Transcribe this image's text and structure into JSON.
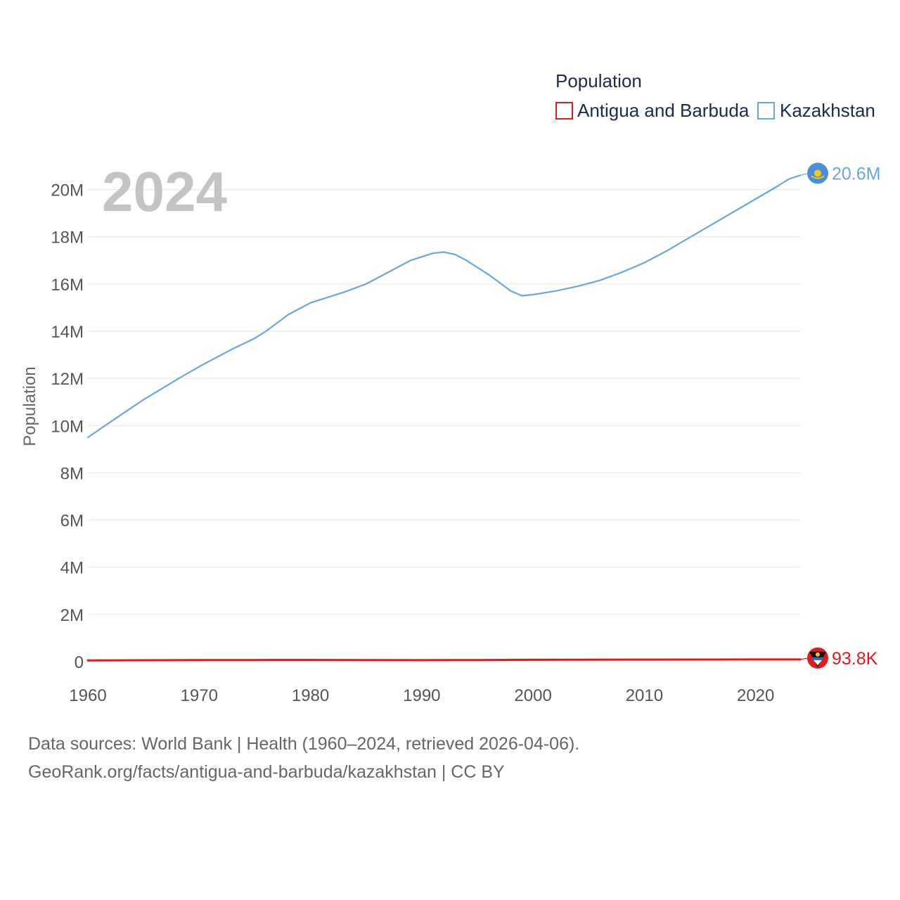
{
  "chart_data": {
    "type": "line",
    "title": "",
    "year_label": "2024",
    "xlabel": "",
    "ylabel": "Population",
    "legend_title": "Population",
    "legend_position": "top-right",
    "xlim": [
      1960,
      2024
    ],
    "ylim": [
      0,
      21000000
    ],
    "x_ticks": [
      1960,
      1970,
      1980,
      1990,
      2000,
      2010,
      2020
    ],
    "x_tick_labels": [
      "1960",
      "1970",
      "1980",
      "1990",
      "2000",
      "2010",
      "2020"
    ],
    "y_ticks": [
      0,
      2000000,
      4000000,
      6000000,
      8000000,
      10000000,
      12000000,
      14000000,
      16000000,
      18000000,
      20000000
    ],
    "y_tick_labels": [
      "0",
      "2M",
      "4M",
      "6M",
      "8M",
      "10M",
      "12M",
      "14M",
      "16M",
      "18M",
      "20M"
    ],
    "grid": true,
    "series": [
      {
        "name": "Antigua and Barbuda",
        "color": "#e31a1c",
        "end_label": "93.8K",
        "x": [
          1960,
          1965,
          1970,
          1975,
          1980,
          1985,
          1990,
          1995,
          2000,
          2005,
          2010,
          2015,
          2020,
          2024
        ],
        "values": [
          55000,
          60000,
          66000,
          69000,
          71000,
          66000,
          62000,
          68000,
          76000,
          81000,
          85000,
          88000,
          92000,
          93800
        ]
      },
      {
        "name": "Kazakhstan",
        "color": "#6aa6e0",
        "end_label": "20.6M",
        "x": [
          1960,
          1962,
          1965,
          1968,
          1970,
          1973,
          1975,
          1976,
          1978,
          1980,
          1983,
          1985,
          1987,
          1989,
          1991,
          1992,
          1993,
          1994,
          1996,
          1998,
          1999,
          2000,
          2002,
          2004,
          2006,
          2008,
          2010,
          2012,
          2014,
          2016,
          2018,
          2020,
          2022,
          2023,
          2024
        ],
        "values": [
          9500000,
          10150000,
          11100000,
          11950000,
          12500000,
          13250000,
          13700000,
          14000000,
          14700000,
          15200000,
          15650000,
          16000000,
          16500000,
          17000000,
          17300000,
          17350000,
          17250000,
          17000000,
          16400000,
          15700000,
          15500000,
          15550000,
          15700000,
          15900000,
          16150000,
          16500000,
          16900000,
          17400000,
          17950000,
          18500000,
          19050000,
          19600000,
          20150000,
          20450000,
          20600000
        ]
      }
    ]
  },
  "footer": {
    "line1": "Data sources: World Bank | Health (1960–2024, retrieved 2026-04-06).",
    "line2": "GeoRank.org/facts/antigua-and-barbuda/kazakhstan | CC BY"
  }
}
